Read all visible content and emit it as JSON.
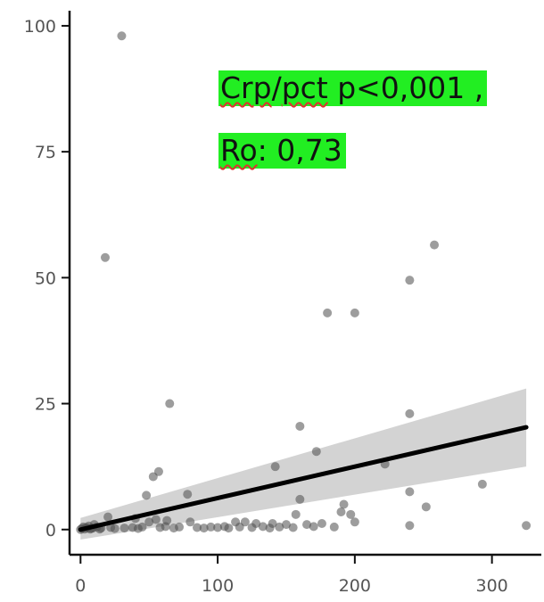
{
  "chart_data": {
    "type": "scatter",
    "title": "",
    "xlabel": "",
    "ylabel": "",
    "xlim": [
      -8,
      336
    ],
    "ylim": [
      -5,
      103
    ],
    "x_ticks": [
      0,
      100,
      200,
      300
    ],
    "y_ticks": [
      0,
      25,
      50,
      75,
      100
    ],
    "x_tick_labels": [
      "0",
      "100",
      "200",
      "300"
    ],
    "y_tick_labels": [
      "0",
      "25",
      "50",
      "75",
      "100"
    ],
    "grid": false,
    "point_color": "#4d4d4d",
    "line_color": "#000000",
    "band_color": "#d3d3d3",
    "annotation_bg": "#22ee22",
    "points": [
      [
        30,
        98
      ],
      [
        18,
        54
      ],
      [
        258,
        56.5
      ],
      [
        240,
        49.5
      ],
      [
        180,
        43
      ],
      [
        200,
        43
      ],
      [
        65,
        25
      ],
      [
        160,
        20.5
      ],
      [
        240,
        23
      ],
      [
        172,
        15.5
      ],
      [
        222,
        13
      ],
      [
        142,
        12.5
      ],
      [
        57,
        11.5
      ],
      [
        53,
        10.5
      ],
      [
        293,
        9
      ],
      [
        240,
        7.5
      ],
      [
        78,
        7
      ],
      [
        48,
        6.8
      ],
      [
        160,
        6
      ],
      [
        192,
        5
      ],
      [
        252,
        4.5
      ],
      [
        190,
        3.5
      ],
      [
        157,
        3
      ],
      [
        197,
        3
      ],
      [
        20,
        2.5
      ],
      [
        40,
        2.2
      ],
      [
        55,
        2
      ],
      [
        63,
        1.8
      ],
      [
        50,
        1.5
      ],
      [
        80,
        1.5
      ],
      [
        113,
        1.5
      ],
      [
        120,
        1.5
      ],
      [
        128,
        1.2
      ],
      [
        140,
        1.2
      ],
      [
        150,
        1
      ],
      [
        165,
        1
      ],
      [
        176,
        1.2
      ],
      [
        200,
        1.5
      ],
      [
        240,
        0.8
      ],
      [
        185,
        0.5
      ],
      [
        325,
        0.8
      ],
      [
        10,
        1
      ],
      [
        2,
        0.5
      ],
      [
        5,
        0.3
      ],
      [
        8,
        0.2
      ],
      [
        12,
        0.5
      ],
      [
        15,
        0.3
      ],
      [
        22,
        0.4
      ],
      [
        25,
        0.2
      ],
      [
        32,
        0.3
      ],
      [
        38,
        0.4
      ],
      [
        42,
        0.2
      ],
      [
        45,
        0.5
      ],
      [
        58,
        0.4
      ],
      [
        62,
        0.6
      ],
      [
        68,
        0.3
      ],
      [
        72,
        0.5
      ],
      [
        85,
        0.4
      ],
      [
        90,
        0.3
      ],
      [
        95,
        0.5
      ],
      [
        100,
        0.4
      ],
      [
        105,
        0.6
      ],
      [
        108,
        0.3
      ],
      [
        116,
        0.5
      ],
      [
        125,
        0.4
      ],
      [
        133,
        0.6
      ],
      [
        138,
        0.3
      ],
      [
        145,
        0.5
      ],
      [
        155,
        0.4
      ],
      [
        170,
        0.6
      ],
      [
        3,
        0.1
      ],
      [
        6,
        0.7
      ],
      [
        0,
        0
      ],
      [
        1,
        0.2
      ],
      [
        4,
        0.4
      ],
      [
        7,
        0.1
      ],
      [
        9,
        0.3
      ],
      [
        14,
        0.1
      ]
    ],
    "fit_line": {
      "x": [
        0,
        325
      ],
      "y": [
        0,
        20.3
      ]
    },
    "confidence_band": {
      "x": [
        0,
        325
      ],
      "upper": [
        2.3,
        28
      ],
      "lower": [
        -2,
        12.5
      ]
    },
    "annotation": {
      "line1": {
        "part1": "Crp",
        "sep1": "/",
        "part2": "pct",
        "part3": " p<0,001 ,"
      },
      "line2": {
        "part1": "Ro",
        "part2": ": 0,73"
      }
    }
  }
}
